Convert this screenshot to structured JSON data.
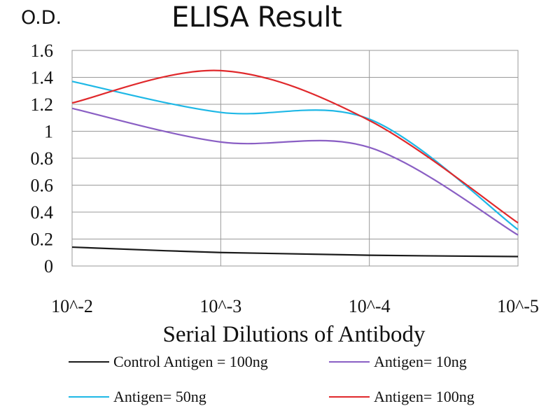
{
  "chart_data": {
    "type": "line",
    "title": "ELISA Result",
    "ylabel": "O.D.",
    "xlabel": "Serial Dilutions of Antibody",
    "x": [
      "10^-2",
      "10^-3",
      "10^-4",
      "10^-5"
    ],
    "ylim": [
      0,
      1.6
    ],
    "yticks": [
      "0",
      "0.2",
      "0.4",
      "0.6",
      "0.8",
      "1",
      "1.2",
      "1.4",
      "1.6"
    ],
    "grid": true,
    "legend_position": "bottom",
    "series": [
      {
        "name": "Control Antigen = 100ng",
        "color": "#1a1a1a",
        "values": [
          0.14,
          0.1,
          0.08,
          0.07
        ]
      },
      {
        "name": "Antigen= 10ng",
        "color": "#8a5fc4",
        "values": [
          1.17,
          0.92,
          0.88,
          0.23
        ]
      },
      {
        "name": "Antigen= 50ng",
        "color": "#1fb8e6",
        "values": [
          1.37,
          1.14,
          1.09,
          0.27
        ]
      },
      {
        "name": "Antigen= 100ng",
        "color": "#e0292c",
        "values": [
          1.21,
          1.45,
          1.08,
          0.32
        ]
      }
    ]
  }
}
